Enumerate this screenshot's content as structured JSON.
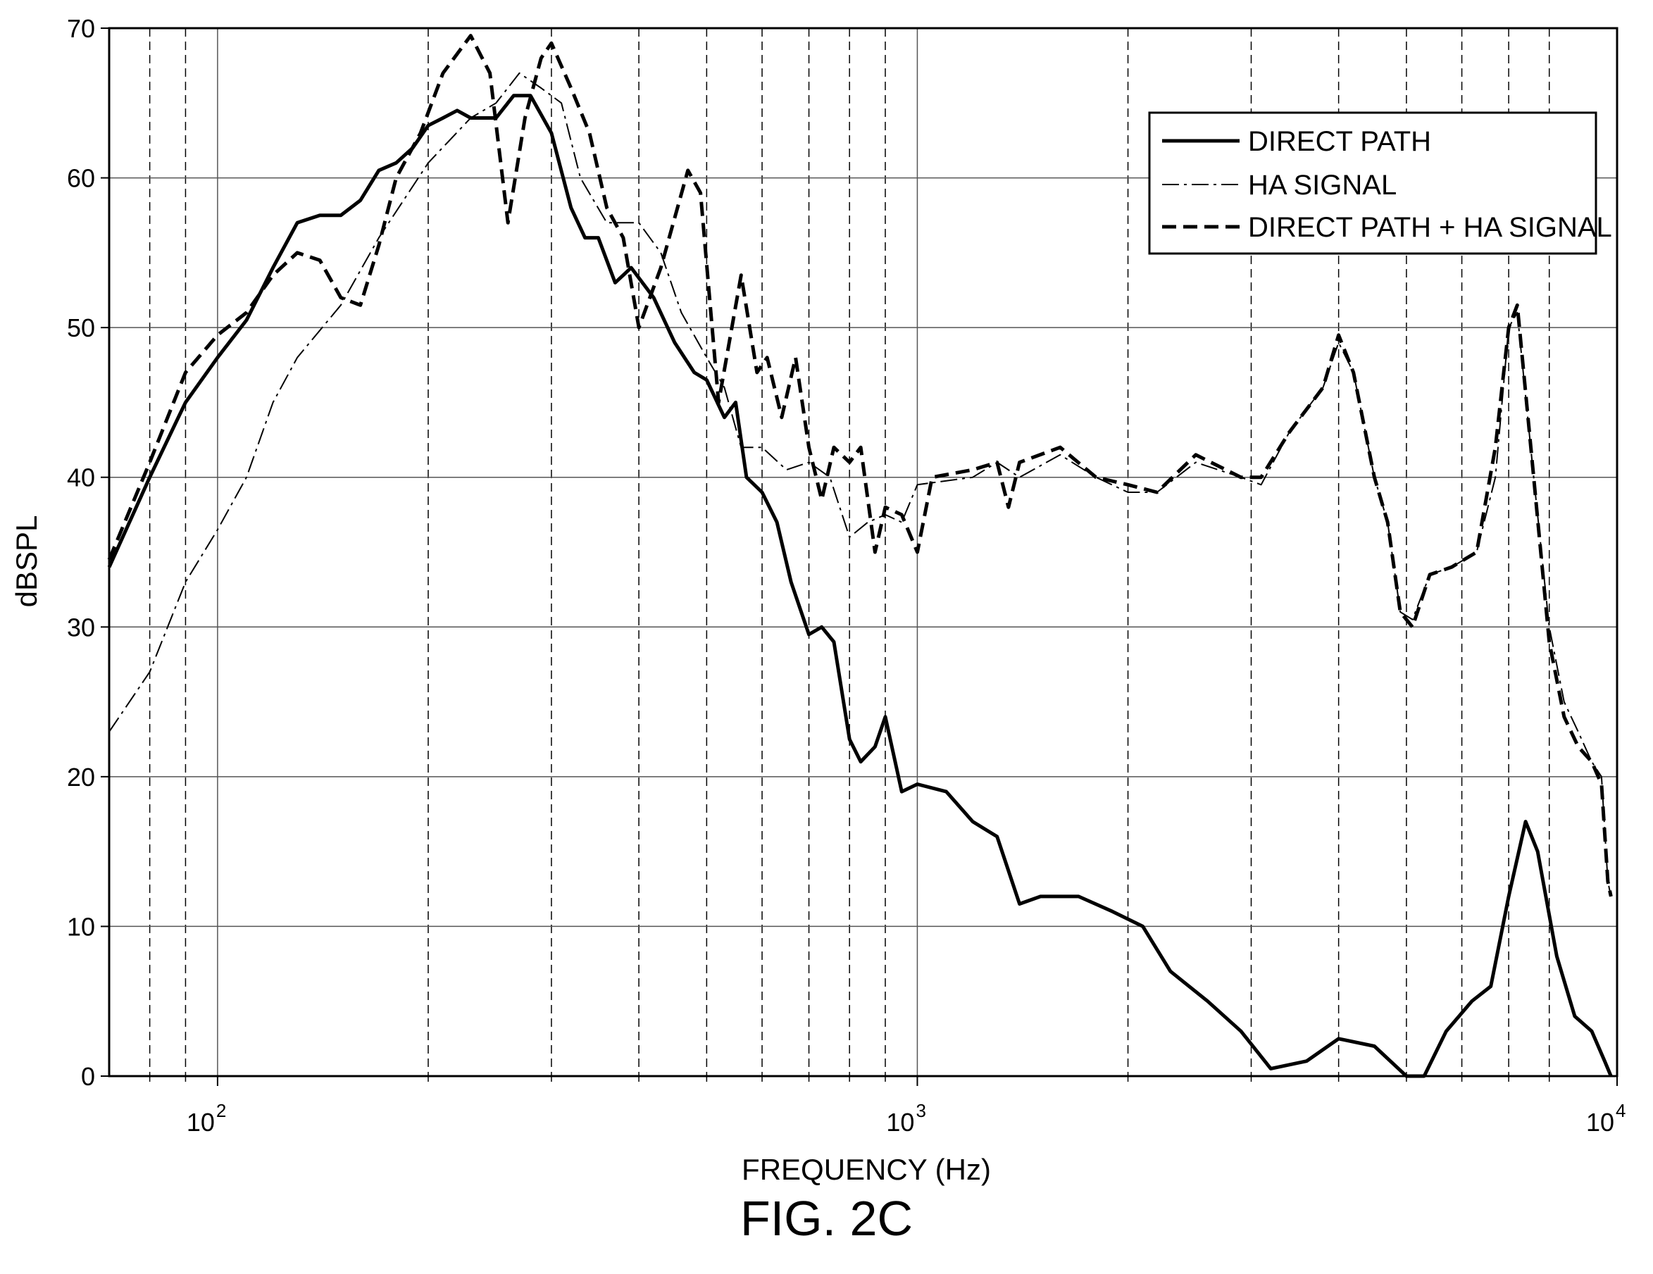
{
  "figure_caption": "FIG. 2C",
  "chart_data": {
    "type": "line",
    "xlabel": "FREQUENCY (Hz)",
    "ylabel": "dBSPL",
    "x_scale": "log",
    "xlim": [
      70,
      10000
    ],
    "ylim": [
      0,
      70
    ],
    "grid": true,
    "legend_position": "top-right",
    "x_major_ticks": [
      {
        "base": "10",
        "exp": "2"
      },
      {
        "base": "10",
        "exp": "3"
      },
      {
        "base": "10",
        "exp": "4"
      }
    ],
    "y_ticks": [
      0,
      10,
      20,
      30,
      40,
      50,
      60,
      70
    ],
    "dashed_reference_frequencies": [
      80,
      90,
      200,
      300,
      400,
      500,
      600,
      700,
      800,
      900,
      2000,
      3000,
      4000,
      5000,
      6000,
      7000,
      8000
    ],
    "series": [
      {
        "name": "DIRECT PATH",
        "style": "solid-thick",
        "points": [
          [
            70,
            34
          ],
          [
            80,
            40
          ],
          [
            90,
            45
          ],
          [
            100,
            48
          ],
          [
            110,
            50.5
          ],
          [
            120,
            54
          ],
          [
            130,
            57
          ],
          [
            140,
            57.5
          ],
          [
            150,
            57.5
          ],
          [
            160,
            58.5
          ],
          [
            170,
            60.5
          ],
          [
            180,
            61
          ],
          [
            190,
            62
          ],
          [
            200,
            63.5
          ],
          [
            210,
            64
          ],
          [
            220,
            64.5
          ],
          [
            230,
            64
          ],
          [
            250,
            64
          ],
          [
            265,
            65.5
          ],
          [
            280,
            65.5
          ],
          [
            300,
            63
          ],
          [
            320,
            58
          ],
          [
            335,
            56
          ],
          [
            350,
            56
          ],
          [
            370,
            53
          ],
          [
            390,
            54
          ],
          [
            420,
            52
          ],
          [
            450,
            49
          ],
          [
            480,
            47
          ],
          [
            500,
            46.5
          ],
          [
            530,
            44
          ],
          [
            550,
            45
          ],
          [
            570,
            40
          ],
          [
            600,
            39
          ],
          [
            630,
            37
          ],
          [
            660,
            33
          ],
          [
            700,
            29.5
          ],
          [
            730,
            30
          ],
          [
            760,
            29
          ],
          [
            800,
            22.5
          ],
          [
            830,
            21
          ],
          [
            870,
            22
          ],
          [
            900,
            24
          ],
          [
            950,
            19
          ],
          [
            1000,
            19.5
          ],
          [
            1100,
            19
          ],
          [
            1200,
            17
          ],
          [
            1300,
            16
          ],
          [
            1400,
            11.5
          ],
          [
            1500,
            12
          ],
          [
            1700,
            12
          ],
          [
            1900,
            11
          ],
          [
            2100,
            10
          ],
          [
            2300,
            7
          ],
          [
            2600,
            5
          ],
          [
            2900,
            3
          ],
          [
            3200,
            0.5
          ],
          [
            3600,
            1
          ],
          [
            4000,
            2.5
          ],
          [
            4500,
            2
          ],
          [
            5000,
            0
          ],
          [
            5300,
            0
          ],
          [
            5700,
            3
          ],
          [
            6200,
            5
          ],
          [
            6600,
            6
          ],
          [
            7000,
            12
          ],
          [
            7400,
            17
          ],
          [
            7700,
            15
          ],
          [
            8200,
            8
          ],
          [
            8700,
            4
          ],
          [
            9200,
            3
          ],
          [
            9600,
            1
          ],
          [
            9800,
            0
          ]
        ]
      },
      {
        "name": "HA SIGNAL",
        "style": "dash-dot-thin",
        "points": [
          [
            70,
            23
          ],
          [
            80,
            27
          ],
          [
            90,
            33
          ],
          [
            100,
            36.5
          ],
          [
            110,
            40
          ],
          [
            120,
            45
          ],
          [
            130,
            48
          ],
          [
            150,
            51.5
          ],
          [
            170,
            56
          ],
          [
            200,
            61
          ],
          [
            230,
            64
          ],
          [
            250,
            65
          ],
          [
            270,
            67
          ],
          [
            290,
            66
          ],
          [
            310,
            65
          ],
          [
            330,
            60
          ],
          [
            360,
            57
          ],
          [
            400,
            57
          ],
          [
            430,
            55
          ],
          [
            460,
            51
          ],
          [
            500,
            48
          ],
          [
            530,
            46
          ],
          [
            560,
            42
          ],
          [
            600,
            42
          ],
          [
            650,
            40.5
          ],
          [
            700,
            41
          ],
          [
            750,
            40
          ],
          [
            800,
            36
          ],
          [
            850,
            37
          ],
          [
            900,
            37.5
          ],
          [
            950,
            37
          ],
          [
            1000,
            39.5
          ],
          [
            1200,
            40
          ],
          [
            1300,
            41
          ],
          [
            1400,
            40
          ],
          [
            1600,
            41.5
          ],
          [
            1800,
            40
          ],
          [
            2000,
            39
          ],
          [
            2200,
            39
          ],
          [
            2500,
            41
          ],
          [
            2900,
            40
          ],
          [
            3100,
            39.5
          ],
          [
            3400,
            43
          ],
          [
            3800,
            46
          ],
          [
            4000,
            49
          ],
          [
            4200,
            47
          ],
          [
            4500,
            40
          ],
          [
            4700,
            37
          ],
          [
            4900,
            31
          ],
          [
            5100,
            30.5
          ],
          [
            5400,
            33.5
          ],
          [
            5800,
            34
          ],
          [
            6300,
            35
          ],
          [
            6700,
            40
          ],
          [
            7000,
            50
          ],
          [
            7200,
            51
          ],
          [
            7600,
            40
          ],
          [
            8000,
            30
          ],
          [
            8400,
            25
          ],
          [
            8800,
            23
          ],
          [
            9200,
            21
          ],
          [
            9500,
            20
          ],
          [
            9700,
            13
          ],
          [
            9800,
            12
          ]
        ]
      },
      {
        "name": "DIRECT PATH + HA SIGNAL",
        "style": "dashed-thick",
        "points": [
          [
            70,
            34.5
          ],
          [
            80,
            41
          ],
          [
            90,
            47
          ],
          [
            100,
            49.5
          ],
          [
            110,
            51
          ],
          [
            120,
            53.5
          ],
          [
            130,
            55
          ],
          [
            140,
            54.5
          ],
          [
            150,
            52
          ],
          [
            160,
            51.5
          ],
          [
            170,
            55.5
          ],
          [
            180,
            60
          ],
          [
            195,
            63
          ],
          [
            210,
            67
          ],
          [
            230,
            69.5
          ],
          [
            245,
            67
          ],
          [
            260,
            57
          ],
          [
            275,
            64
          ],
          [
            290,
            68
          ],
          [
            300,
            69
          ],
          [
            320,
            66
          ],
          [
            340,
            63
          ],
          [
            360,
            58
          ],
          [
            380,
            56
          ],
          [
            400,
            50
          ],
          [
            430,
            54
          ],
          [
            470,
            60.5
          ],
          [
            490,
            59
          ],
          [
            520,
            45
          ],
          [
            560,
            53.5
          ],
          [
            590,
            47
          ],
          [
            610,
            48
          ],
          [
            640,
            44
          ],
          [
            670,
            48
          ],
          [
            700,
            42
          ],
          [
            730,
            38.5
          ],
          [
            760,
            42
          ],
          [
            800,
            41
          ],
          [
            830,
            42
          ],
          [
            870,
            35
          ],
          [
            900,
            38
          ],
          [
            950,
            37.5
          ],
          [
            1000,
            35
          ],
          [
            1050,
            40
          ],
          [
            1200,
            40.5
          ],
          [
            1300,
            41
          ],
          [
            1350,
            38
          ],
          [
            1400,
            41
          ],
          [
            1600,
            42
          ],
          [
            1800,
            40
          ],
          [
            2000,
            39.5
          ],
          [
            2200,
            39
          ],
          [
            2500,
            41.5
          ],
          [
            2900,
            40
          ],
          [
            3100,
            40
          ],
          [
            3400,
            43
          ],
          [
            3800,
            46
          ],
          [
            4000,
            49.5
          ],
          [
            4200,
            47
          ],
          [
            4500,
            40
          ],
          [
            4700,
            37
          ],
          [
            4900,
            31
          ],
          [
            5100,
            30
          ],
          [
            5400,
            33.5
          ],
          [
            5800,
            34
          ],
          [
            6300,
            35
          ],
          [
            6700,
            42
          ],
          [
            7000,
            50
          ],
          [
            7200,
            51.5
          ],
          [
            7600,
            40
          ],
          [
            8000,
            29
          ],
          [
            8400,
            24
          ],
          [
            8800,
            22
          ],
          [
            9200,
            21
          ],
          [
            9500,
            19.5
          ],
          [
            9700,
            13
          ],
          [
            9800,
            12
          ]
        ]
      }
    ]
  }
}
